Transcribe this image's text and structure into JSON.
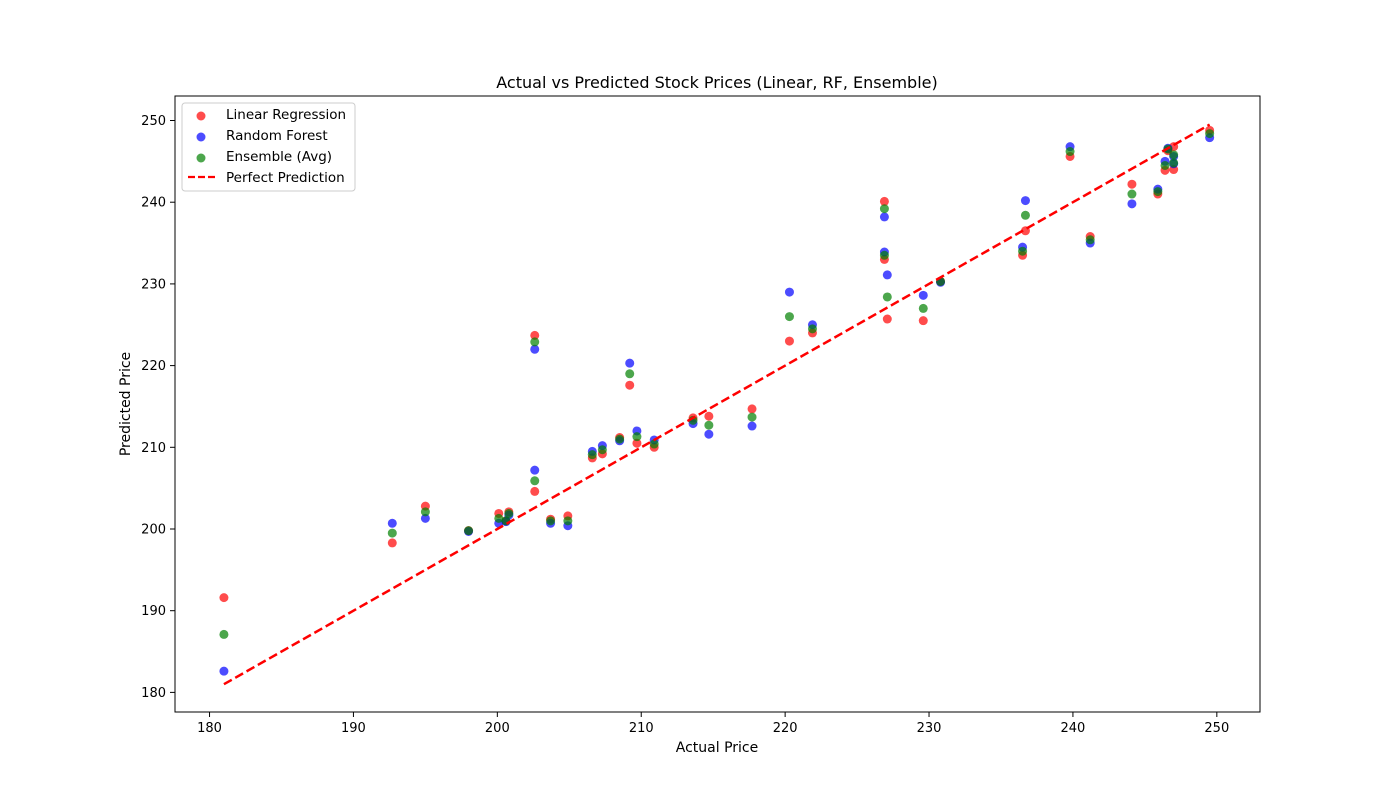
{
  "chart_data": {
    "type": "scatter",
    "title": "Actual vs Predicted Stock Prices (Linear, RF, Ensemble)",
    "xlabel": "Actual Price",
    "ylabel": "Predicted Price",
    "xlim": [
      177.6,
      253
    ],
    "ylim": [
      177.6,
      253
    ],
    "xticks": [
      180,
      190,
      200,
      210,
      220,
      230,
      240,
      250
    ],
    "yticks": [
      180,
      190,
      200,
      210,
      220,
      230,
      240,
      250
    ],
    "grid": false,
    "legend_position": "upper-left",
    "series": [
      {
        "name": "Linear Regression",
        "color": "#ff0000",
        "points": [
          [
            181,
            191.6
          ],
          [
            192.7,
            198.3
          ],
          [
            195,
            202.8
          ],
          [
            198,
            199.8
          ],
          [
            200.1,
            201.9
          ],
          [
            200.6,
            201.0
          ],
          [
            200.8,
            202.1
          ],
          [
            202.6,
            204.6
          ],
          [
            202.6,
            223.7
          ],
          [
            203.7,
            201.2
          ],
          [
            204.9,
            201.6
          ],
          [
            206.6,
            208.7
          ],
          [
            207.3,
            209.2
          ],
          [
            208.5,
            211.2
          ],
          [
            209.2,
            217.6
          ],
          [
            209.7,
            210.5
          ],
          [
            210.9,
            210.0
          ],
          [
            213.6,
            213.6
          ],
          [
            214.7,
            213.8
          ],
          [
            217.7,
            214.7
          ],
          [
            220.3,
            223.0
          ],
          [
            221.9,
            224.0
          ],
          [
            226.9,
            233.0
          ],
          [
            226.9,
            240.1
          ],
          [
            227.1,
            225.7
          ],
          [
            229.6,
            225.5
          ],
          [
            230.8,
            230.3
          ],
          [
            236.5,
            233.5
          ],
          [
            236.7,
            236.5
          ],
          [
            239.8,
            245.6
          ],
          [
            241.2,
            235.8
          ],
          [
            244.1,
            242.2
          ],
          [
            245.9,
            241.0
          ],
          [
            246.4,
            243.9
          ],
          [
            246.6,
            246.3
          ],
          [
            247.0,
            244.0
          ],
          [
            247.0,
            246.8
          ],
          [
            249.5,
            248.8
          ]
        ]
      },
      {
        "name": "Random Forest",
        "color": "#0000ff",
        "points": [
          [
            181,
            182.6
          ],
          [
            192.7,
            200.7
          ],
          [
            195,
            201.3
          ],
          [
            198,
            199.7
          ],
          [
            200.1,
            200.7
          ],
          [
            200.6,
            200.9
          ],
          [
            200.8,
            201.7
          ],
          [
            202.6,
            207.2
          ],
          [
            202.6,
            222.0
          ],
          [
            203.7,
            200.7
          ],
          [
            204.9,
            200.4
          ],
          [
            206.6,
            209.5
          ],
          [
            207.3,
            210.2
          ],
          [
            208.5,
            210.8
          ],
          [
            209.2,
            220.3
          ],
          [
            209.7,
            212.0
          ],
          [
            210.9,
            210.9
          ],
          [
            213.6,
            212.9
          ],
          [
            214.7,
            211.6
          ],
          [
            217.7,
            212.6
          ],
          [
            220.3,
            229.0
          ],
          [
            221.9,
            225.0
          ],
          [
            226.9,
            233.9
          ],
          [
            226.9,
            238.2
          ],
          [
            227.1,
            231.1
          ],
          [
            229.6,
            228.6
          ],
          [
            230.8,
            230.2
          ],
          [
            236.5,
            234.5
          ],
          [
            236.7,
            240.2
          ],
          [
            239.8,
            246.8
          ],
          [
            241.2,
            235.0
          ],
          [
            244.1,
            239.8
          ],
          [
            245.9,
            241.6
          ],
          [
            246.4,
            245.0
          ],
          [
            246.6,
            246.6
          ],
          [
            247.0,
            245.6
          ],
          [
            247.0,
            244.7
          ],
          [
            249.5,
            247.9
          ]
        ]
      },
      {
        "name": "Ensemble (Avg)",
        "color": "#008000",
        "points": [
          [
            181,
            187.1
          ],
          [
            192.7,
            199.5
          ],
          [
            195,
            202.1
          ],
          [
            198,
            199.8
          ],
          [
            200.1,
            201.3
          ],
          [
            200.6,
            201.0
          ],
          [
            200.8,
            201.9
          ],
          [
            202.6,
            205.9
          ],
          [
            202.6,
            222.9
          ],
          [
            203.7,
            201.0
          ],
          [
            204.9,
            201.0
          ],
          [
            206.6,
            209.1
          ],
          [
            207.3,
            209.7
          ],
          [
            208.5,
            211.0
          ],
          [
            209.2,
            219.0
          ],
          [
            209.7,
            211.3
          ],
          [
            210.9,
            210.4
          ],
          [
            213.6,
            213.3
          ],
          [
            214.7,
            212.7
          ],
          [
            217.7,
            213.7
          ],
          [
            220.3,
            226.0
          ],
          [
            221.9,
            224.5
          ],
          [
            226.9,
            233.5
          ],
          [
            226.9,
            239.2
          ],
          [
            227.1,
            228.4
          ],
          [
            229.6,
            227.0
          ],
          [
            230.8,
            230.3
          ],
          [
            236.5,
            234.0
          ],
          [
            236.7,
            238.4
          ],
          [
            239.8,
            246.2
          ],
          [
            241.2,
            235.4
          ],
          [
            244.1,
            241.0
          ],
          [
            245.9,
            241.3
          ],
          [
            246.4,
            244.5
          ],
          [
            246.6,
            246.5
          ],
          [
            247.0,
            244.8
          ],
          [
            247.0,
            245.8
          ],
          [
            249.5,
            248.4
          ]
        ]
      }
    ],
    "reference_line": {
      "name": "Perfect Prediction",
      "color": "#ff0000",
      "style": "dashed",
      "from": [
        181,
        181
      ],
      "to": [
        249.5,
        249.5
      ]
    }
  }
}
